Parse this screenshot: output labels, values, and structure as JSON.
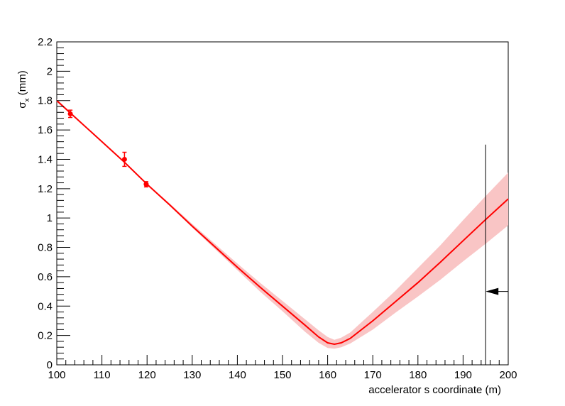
{
  "chart_data": {
    "type": "line",
    "xlabel": "accelerator s coordinate (m)",
    "ylabel": "σ",
    "ylabel_sub": "x",
    "ylabel_unit": " (mm)",
    "xlim": [
      100,
      200
    ],
    "ylim": [
      0,
      2.2
    ],
    "xticks": [
      100,
      110,
      120,
      130,
      140,
      150,
      160,
      170,
      180,
      190,
      200
    ],
    "yticks": [
      0,
      0.2,
      0.4,
      0.6,
      0.8,
      1,
      1.2,
      1.4,
      1.6,
      1.8,
      2,
      2.2
    ],
    "grid": false,
    "colors": {
      "fit": "#ff0000",
      "band": "#f9c5c5",
      "marker": "#000000"
    },
    "measurements": [
      {
        "x": 103.0,
        "y": 1.71,
        "err": 0.025
      },
      {
        "x": 115.0,
        "y": 1.4,
        "err": 0.048
      },
      {
        "x": 119.8,
        "y": 1.23,
        "err": 0.018
      }
    ],
    "fit_curve": {
      "x": [
        100,
        105,
        110,
        115,
        120,
        125,
        130,
        135,
        140,
        145,
        150,
        155,
        158,
        160,
        161.5,
        163,
        165,
        170,
        175,
        180,
        185,
        190,
        195,
        200
      ],
      "y": [
        1.8,
        1.66,
        1.52,
        1.38,
        1.23,
        1.09,
        0.945,
        0.805,
        0.665,
        0.53,
        0.4,
        0.27,
        0.19,
        0.15,
        0.14,
        0.15,
        0.18,
        0.3,
        0.43,
        0.56,
        0.7,
        0.845,
        0.99,
        1.13
      ],
      "band_lower": [
        1.79,
        1.655,
        1.515,
        1.375,
        1.225,
        1.085,
        0.935,
        0.79,
        0.645,
        0.5,
        0.365,
        0.225,
        0.15,
        0.115,
        0.11,
        0.12,
        0.145,
        0.24,
        0.355,
        0.465,
        0.58,
        0.705,
        0.825,
        0.95
      ],
      "band_upper": [
        1.81,
        1.665,
        1.525,
        1.385,
        1.235,
        1.1,
        0.96,
        0.825,
        0.69,
        0.56,
        0.435,
        0.31,
        0.235,
        0.19,
        0.17,
        0.185,
        0.22,
        0.36,
        0.505,
        0.66,
        0.815,
        0.985,
        1.15,
        1.31
      ]
    },
    "vertical_marker": {
      "x": 195,
      "y_top": 1.5
    },
    "arrow_marker": {
      "x_from": 200,
      "x_to": 195,
      "y": 0.5
    }
  }
}
